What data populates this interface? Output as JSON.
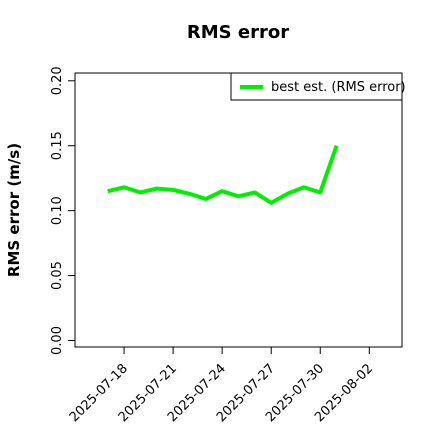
{
  "chart_data": {
    "type": "line",
    "title": "RMS error",
    "y_label": "RMS error (m/s)",
    "x": [
      "2025-07-17",
      "2025-07-18",
      "2025-07-19",
      "2025-07-20",
      "2025-07-21",
      "2025-07-22",
      "2025-07-23",
      "2025-07-24",
      "2025-07-25",
      "2025-07-26",
      "2025-07-27",
      "2025-07-28",
      "2025-07-29",
      "2025-07-30",
      "2025-07-31"
    ],
    "series": [
      {
        "name": "best est. (RMS error)",
        "color": "#00ee00",
        "values": [
          0.115,
          0.118,
          0.114,
          0.117,
          0.116,
          0.113,
          0.109,
          0.115,
          0.111,
          0.114,
          0.106,
          0.113,
          0.118,
          0.114,
          0.15
        ]
      }
    ],
    "xlim": [
      "2025-07-15",
      "2025-08-04"
    ],
    "xticks": [
      "2025-07-18",
      "2025-07-21",
      "2025-07-24",
      "2025-07-27",
      "2025-07-30",
      "2025-08-02"
    ],
    "xtick_colors": [
      "#000000",
      "#000000",
      "#228b22",
      "#000000",
      "#000000",
      "#000000"
    ],
    "ylim": [
      -0.005,
      0.206
    ],
    "yticks": [
      {
        "value": 0,
        "label": "0.00"
      },
      {
        "value": 0.05,
        "label": "0.05"
      },
      {
        "value": 0.1,
        "label": "0.10"
      },
      {
        "value": 0.15,
        "label": "0.15"
      },
      {
        "value": 0.2,
        "label": "0.20"
      }
    ],
    "grid": false,
    "legend": "top-right"
  }
}
